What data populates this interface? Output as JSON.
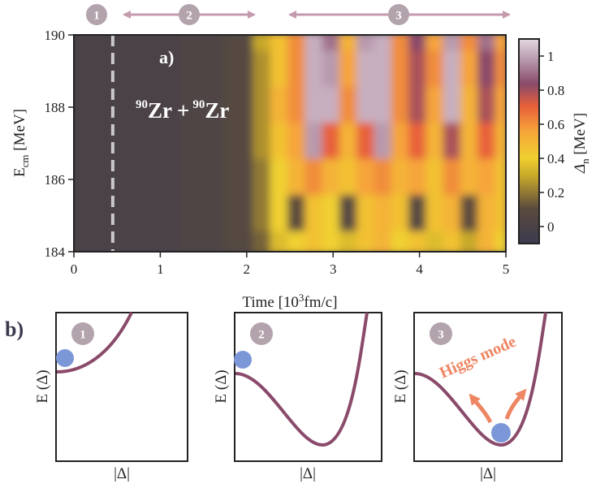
{
  "colors": {
    "badge": "#b3a3ad",
    "badge_text": "#ffffff",
    "phase_arrow": "#c59aad",
    "curve": "#8a4a6a",
    "ball": "#7c97d8",
    "higgs": "#ee8663",
    "colormap": [
      "#3c3a4e",
      "#6a5a3a",
      "#e8cc2a",
      "#f6a43a",
      "#e8603a",
      "#8a4a6a",
      "#b89aae",
      "#d8c8d4"
    ]
  },
  "phases": [
    {
      "number": "1"
    },
    {
      "number": "2"
    },
    {
      "number": "3"
    }
  ],
  "panel_a": {
    "label": "a)",
    "reaction": {
      "mass1": "90",
      "el1": "Zr",
      "plus": "+",
      "mass2": "90",
      "el2": "Zr"
    },
    "xlabel": {
      "pre": "Time [10",
      "sup": "3",
      "post": "fm/c]"
    },
    "ylabel": {
      "main": "E",
      "sub": "cm",
      "unit": " [MeV]"
    },
    "cbar_label": {
      "main": "Δ",
      "sub": "n",
      "unit": " [MeV]"
    }
  },
  "chart_data": {
    "type": "heatmap",
    "title": "",
    "x": {
      "label": "Time [10^3 fm/c]",
      "range": [
        0,
        5
      ],
      "ticks": [
        "0",
        "1",
        "2",
        "3",
        "4",
        "5"
      ]
    },
    "y": {
      "label": "E_cm [MeV]",
      "range": [
        184,
        190
      ],
      "ticks": [
        "184",
        "186",
        "188",
        "190"
      ]
    },
    "colorbar": {
      "label": "Δ_n [MeV]",
      "range": [
        -0.1,
        1.1
      ],
      "ticks": [
        "0",
        "0.2",
        "0.4",
        "0.6",
        "0.8",
        "1"
      ]
    },
    "annotations": {
      "dashed_line_time": 0.45
    },
    "rows_energy_mev": [
      190,
      189,
      188,
      187,
      186,
      185,
      184
    ],
    "cols_time": [
      0.0,
      0.5,
      1.0,
      1.5,
      2.0,
      2.2,
      2.4,
      2.6,
      2.8,
      3.0,
      3.2,
      3.4,
      3.6,
      3.8,
      4.0,
      4.2,
      4.4,
      4.6,
      4.8,
      5.0
    ],
    "values": [
      [
        0.0,
        0.0,
        0.0,
        0.02,
        0.05,
        0.3,
        0.45,
        0.6,
        1.0,
        0.9,
        0.5,
        0.95,
        1.0,
        0.6,
        0.85,
        0.55,
        0.95,
        0.6,
        0.9,
        0.55
      ],
      [
        0.0,
        0.0,
        0.0,
        0.02,
        0.05,
        0.25,
        0.45,
        0.6,
        1.0,
        0.95,
        0.55,
        1.0,
        1.0,
        0.6,
        0.8,
        0.6,
        1.0,
        0.55,
        0.85,
        0.6
      ],
      [
        0.0,
        0.0,
        0.0,
        0.02,
        0.05,
        0.25,
        0.5,
        0.6,
        1.0,
        1.0,
        0.6,
        1.0,
        1.0,
        0.6,
        0.8,
        0.55,
        1.0,
        0.5,
        0.8,
        0.55
      ],
      [
        0.0,
        0.0,
        0.0,
        0.02,
        0.05,
        0.25,
        0.45,
        0.55,
        0.95,
        0.7,
        0.5,
        0.7,
        0.95,
        0.55,
        0.7,
        0.5,
        0.8,
        0.5,
        0.7,
        0.5
      ],
      [
        0.0,
        0.0,
        0.0,
        0.02,
        0.05,
        0.2,
        0.4,
        0.5,
        0.6,
        0.5,
        0.45,
        0.55,
        0.6,
        0.5,
        0.55,
        0.45,
        0.6,
        0.5,
        0.55,
        0.45
      ],
      [
        0.0,
        0.0,
        0.0,
        0.02,
        0.05,
        0.2,
        0.4,
        0.1,
        0.45,
        0.4,
        0.05,
        0.45,
        0.5,
        0.45,
        0.05,
        0.45,
        0.5,
        0.1,
        0.5,
        0.45
      ],
      [
        0.0,
        0.0,
        0.0,
        0.02,
        0.05,
        0.15,
        0.35,
        0.4,
        0.45,
        0.4,
        0.35,
        0.45,
        0.5,
        0.4,
        0.45,
        0.35,
        0.45,
        0.3,
        0.5,
        0.4
      ]
    ]
  },
  "panel_b": {
    "label": "b)",
    "xlabel": "|Δ|",
    "ylabel": "E (Δ)",
    "annotation": "Higgs mode"
  }
}
